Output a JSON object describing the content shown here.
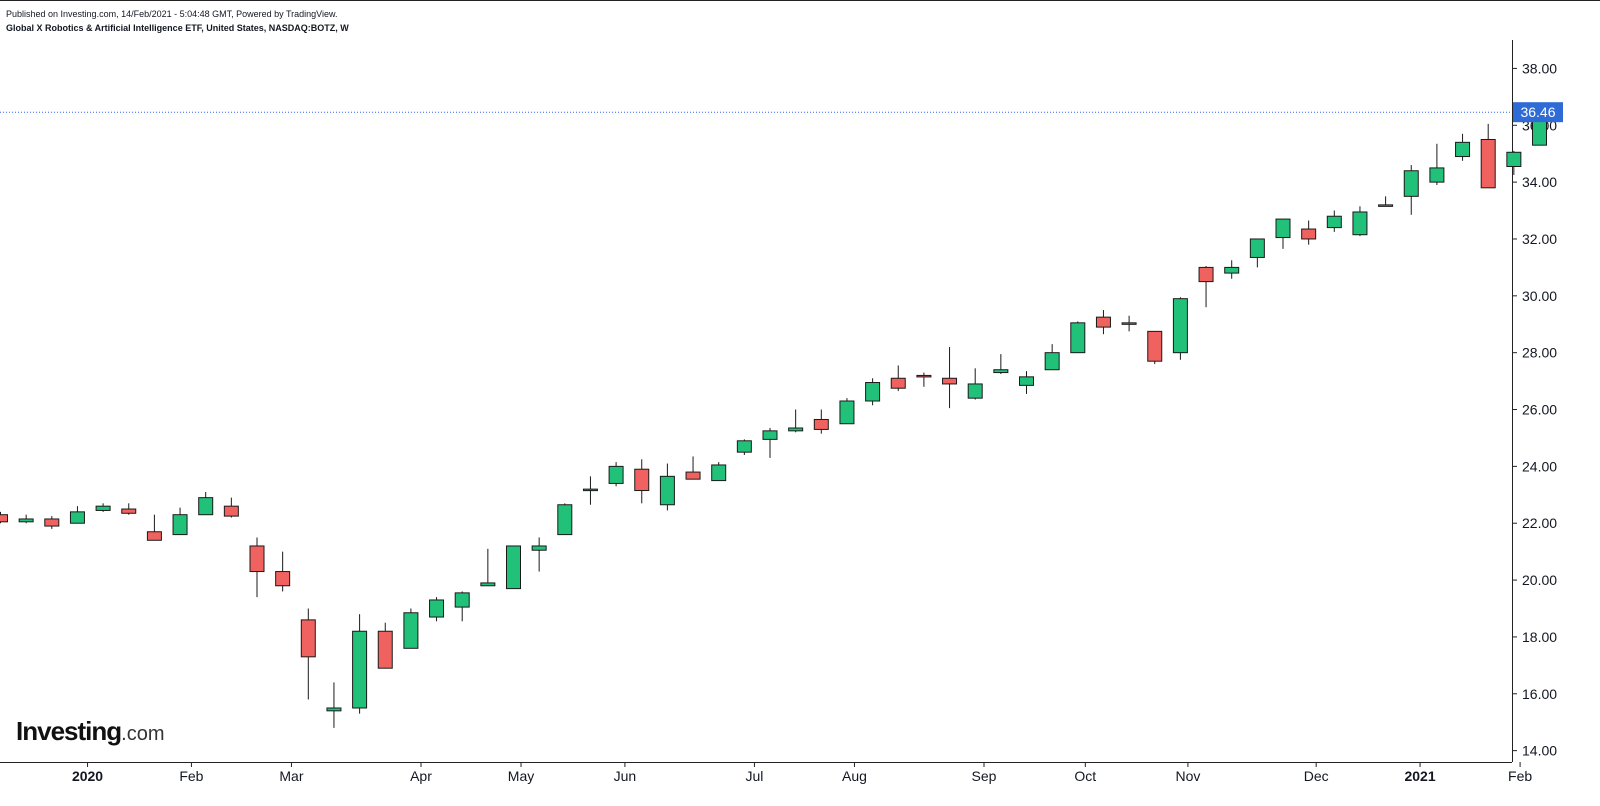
{
  "header": {
    "published": "Published on Investing.com, 14/Feb/2021 - 5:04:48 GMT, Powered by TradingView.",
    "instrument": "Global X Robotics & Artificial Intelligence ETF, United States, NASDAQ:BOTZ, W"
  },
  "logo": {
    "brand": "Investing",
    "suffix": ".com"
  },
  "colors": {
    "up": "#22c17a",
    "down": "#f0625f",
    "wick": "#1a1a1a",
    "price_line": "#2962ff",
    "price_label_bg": "#2f6bd6"
  },
  "chart_data": {
    "type": "candlestick",
    "title": "Global X Robotics & Artificial Intelligence ETF, United States, NASDAQ:BOTZ, W",
    "interval": "W",
    "ylim": [
      13.6,
      39.0
    ],
    "y_ticks": [
      "14.00",
      "16.00",
      "18.00",
      "20.00",
      "22.00",
      "24.00",
      "26.00",
      "28.00",
      "30.00",
      "32.00",
      "34.00",
      "36.00",
      "38.00"
    ],
    "x_ticks": [
      {
        "label": "2020",
        "index": 2.75,
        "bold": true
      },
      {
        "label": "Feb",
        "index": 6.8,
        "bold": false
      },
      {
        "label": "Mar",
        "index": 10.7,
        "bold": false
      },
      {
        "label": "Apr",
        "index": 15.75,
        "bold": false
      },
      {
        "label": "May",
        "index": 19.65,
        "bold": false
      },
      {
        "label": "Jun",
        "index": 23.7,
        "bold": false
      },
      {
        "label": "Jul",
        "index": 28.75,
        "bold": false
      },
      {
        "label": "Aug",
        "index": 32.65,
        "bold": false
      },
      {
        "label": "Sep",
        "index": 37.7,
        "bold": false
      },
      {
        "label": "Oct",
        "index": 41.65,
        "bold": false
      },
      {
        "label": "Nov",
        "index": 45.65,
        "bold": false
      },
      {
        "label": "Dec",
        "index": 50.65,
        "bold": false
      },
      {
        "label": "2021",
        "index": 54.7,
        "bold": true
      },
      {
        "label": "Feb",
        "index": 58.6,
        "bold": false
      }
    ],
    "last_price": "36.46",
    "candles": [
      {
        "o": 22.3,
        "h": 22.4,
        "l": 22.0,
        "c": 22.05
      },
      {
        "o": 22.05,
        "h": 22.3,
        "l": 22.0,
        "c": 22.15
      },
      {
        "o": 22.15,
        "h": 22.25,
        "l": 21.8,
        "c": 21.9
      },
      {
        "o": 22.0,
        "h": 22.6,
        "l": 22.0,
        "c": 22.4
      },
      {
        "o": 22.45,
        "h": 22.7,
        "l": 22.4,
        "c": 22.6
      },
      {
        "o": 22.5,
        "h": 22.7,
        "l": 22.3,
        "c": 22.35
      },
      {
        "o": 21.7,
        "h": 22.3,
        "l": 21.4,
        "c": 21.4
      },
      {
        "o": 21.6,
        "h": 22.55,
        "l": 21.6,
        "c": 22.3
      },
      {
        "o": 22.3,
        "h": 23.1,
        "l": 22.3,
        "c": 22.9
      },
      {
        "o": 22.6,
        "h": 22.9,
        "l": 22.2,
        "c": 22.25
      },
      {
        "o": 21.2,
        "h": 21.5,
        "l": 19.4,
        "c": 20.3
      },
      {
        "o": 20.3,
        "h": 21.0,
        "l": 19.6,
        "c": 19.8
      },
      {
        "o": 18.6,
        "h": 19.0,
        "l": 15.8,
        "c": 17.3
      },
      {
        "o": 15.4,
        "h": 16.4,
        "l": 14.8,
        "c": 15.5
      },
      {
        "o": 15.5,
        "h": 18.8,
        "l": 15.3,
        "c": 18.2
      },
      {
        "o": 18.2,
        "h": 18.5,
        "l": 16.9,
        "c": 16.9
      },
      {
        "o": 17.6,
        "h": 19.0,
        "l": 17.6,
        "c": 18.85
      },
      {
        "o": 18.7,
        "h": 19.4,
        "l": 18.55,
        "c": 19.3
      },
      {
        "o": 19.05,
        "h": 19.6,
        "l": 18.55,
        "c": 19.55
      },
      {
        "o": 19.8,
        "h": 21.1,
        "l": 19.8,
        "c": 19.9
      },
      {
        "o": 19.7,
        "h": 21.2,
        "l": 19.7,
        "c": 21.2
      },
      {
        "o": 21.05,
        "h": 21.5,
        "l": 20.3,
        "c": 21.2
      },
      {
        "o": 21.6,
        "h": 22.7,
        "l": 21.6,
        "c": 22.65
      },
      {
        "o": 23.15,
        "h": 23.65,
        "l": 22.65,
        "c": 23.2
      },
      {
        "o": 23.4,
        "h": 24.15,
        "l": 23.3,
        "c": 24.0
      },
      {
        "o": 23.9,
        "h": 24.25,
        "l": 22.7,
        "c": 23.15
      },
      {
        "o": 22.65,
        "h": 24.1,
        "l": 22.45,
        "c": 23.65
      },
      {
        "o": 23.8,
        "h": 24.35,
        "l": 23.55,
        "c": 23.55
      },
      {
        "o": 23.5,
        "h": 24.15,
        "l": 23.5,
        "c": 24.05
      },
      {
        "o": 24.5,
        "h": 24.95,
        "l": 24.4,
        "c": 24.9
      },
      {
        "o": 24.95,
        "h": 25.35,
        "l": 24.3,
        "c": 25.25
      },
      {
        "o": 25.25,
        "h": 26.0,
        "l": 25.2,
        "c": 25.35
      },
      {
        "o": 25.65,
        "h": 26.0,
        "l": 25.15,
        "c": 25.3
      },
      {
        "o": 25.5,
        "h": 26.4,
        "l": 25.5,
        "c": 26.3
      },
      {
        "o": 26.3,
        "h": 27.1,
        "l": 26.15,
        "c": 26.95
      },
      {
        "o": 27.1,
        "h": 27.55,
        "l": 26.65,
        "c": 26.75
      },
      {
        "o": 27.2,
        "h": 27.3,
        "l": 26.8,
        "c": 27.15
      },
      {
        "o": 27.1,
        "h": 28.2,
        "l": 26.05,
        "c": 26.9
      },
      {
        "o": 26.4,
        "h": 27.45,
        "l": 26.35,
        "c": 26.9
      },
      {
        "o": 27.3,
        "h": 27.95,
        "l": 27.25,
        "c": 27.4
      },
      {
        "o": 26.85,
        "h": 27.35,
        "l": 26.55,
        "c": 27.15
      },
      {
        "o": 27.4,
        "h": 28.3,
        "l": 27.4,
        "c": 28.0
      },
      {
        "o": 28.0,
        "h": 29.1,
        "l": 28.0,
        "c": 29.05
      },
      {
        "o": 29.25,
        "h": 29.5,
        "l": 28.65,
        "c": 28.9
      },
      {
        "o": 29.05,
        "h": 29.3,
        "l": 28.75,
        "c": 29.05
      },
      {
        "o": 28.75,
        "h": 28.75,
        "l": 27.6,
        "c": 27.7
      },
      {
        "o": 28.0,
        "h": 29.95,
        "l": 27.75,
        "c": 29.9
      },
      {
        "o": 31.0,
        "h": 31.05,
        "l": 29.6,
        "c": 30.5
      },
      {
        "o": 30.8,
        "h": 31.25,
        "l": 30.6,
        "c": 31.0
      },
      {
        "o": 31.35,
        "h": 32.0,
        "l": 31.0,
        "c": 32.0
      },
      {
        "o": 32.05,
        "h": 32.7,
        "l": 31.65,
        "c": 32.7
      },
      {
        "o": 32.35,
        "h": 32.65,
        "l": 31.8,
        "c": 32.0
      },
      {
        "o": 32.4,
        "h": 33.0,
        "l": 32.25,
        "c": 32.8
      },
      {
        "o": 32.15,
        "h": 33.15,
        "l": 32.1,
        "c": 32.95
      },
      {
        "o": 33.2,
        "h": 33.5,
        "l": 33.15,
        "c": 33.15
      },
      {
        "o": 33.5,
        "h": 34.6,
        "l": 32.85,
        "c": 34.4
      },
      {
        "o": 34.0,
        "h": 35.35,
        "l": 33.9,
        "c": 34.5
      },
      {
        "o": 34.9,
        "h": 35.7,
        "l": 34.75,
        "c": 35.4
      },
      {
        "o": 35.5,
        "h": 36.05,
        "l": 33.8,
        "c": 33.8
      },
      {
        "o": 34.55,
        "h": 35.1,
        "l": 34.25,
        "c": 35.05
      },
      {
        "o": 35.3,
        "h": 36.46,
        "l": 35.3,
        "c": 36.46
      }
    ]
  }
}
